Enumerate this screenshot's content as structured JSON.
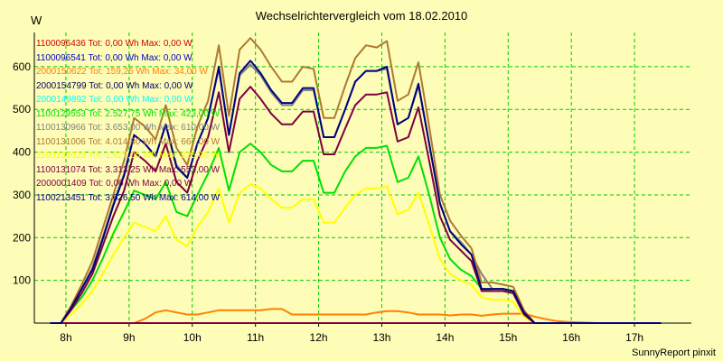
{
  "chart_data": {
    "type": "line",
    "title": "Wechselrichtervergleich vom 18.02.2010",
    "ylabel": "W",
    "footer": "SunnyReport pinxit",
    "ylim": [
      0,
      680
    ],
    "xlim": [
      7.5,
      17.9
    ],
    "grid": true,
    "legend_position": "top-left",
    "y_ticks": [
      100,
      200,
      300,
      400,
      500,
      600
    ],
    "x_ticks": [
      {
        "value": 8,
        "label": "8h"
      },
      {
        "value": 9,
        "label": "9h"
      },
      {
        "value": 10,
        "label": "10h"
      },
      {
        "value": 11,
        "label": "11h"
      },
      {
        "value": 12,
        "label": "12h"
      },
      {
        "value": 13,
        "label": "13h"
      },
      {
        "value": 14,
        "label": "14h"
      },
      {
        "value": 15,
        "label": "15h"
      },
      {
        "value": 16,
        "label": "16h"
      },
      {
        "value": 17,
        "label": "17h"
      }
    ],
    "x": [
      7.75,
      7.92,
      8.08,
      8.25,
      8.42,
      8.58,
      8.75,
      8.92,
      9.08,
      9.25,
      9.42,
      9.58,
      9.75,
      9.92,
      10.08,
      10.25,
      10.42,
      10.58,
      10.75,
      10.92,
      11.08,
      11.25,
      11.42,
      11.58,
      11.75,
      11.92,
      12.08,
      12.25,
      12.42,
      12.58,
      12.75,
      12.92,
      13.08,
      13.25,
      13.42,
      13.58,
      13.75,
      13.92,
      14.08,
      14.25,
      14.42,
      14.58,
      14.75,
      14.92,
      15.08,
      15.25,
      15.42,
      15.58,
      15.75,
      15.92,
      16.08,
      16.25,
      16.42,
      16.58,
      16.75,
      16.92,
      17.08,
      17.25,
      17.42
    ],
    "series": [
      {
        "name": "1100096436 Tot: 0,00 Wh Max: 0,00 W",
        "color": "#cc0000",
        "values": [
          0,
          0,
          0,
          0,
          0,
          0,
          0,
          0,
          0,
          0,
          0,
          0,
          0,
          0,
          0,
          0,
          0,
          0,
          0,
          0,
          0,
          0,
          0,
          0,
          0,
          0,
          0,
          0,
          0,
          0,
          0,
          0,
          0,
          0,
          0,
          0,
          0,
          0,
          0,
          0,
          0,
          0,
          0,
          0,
          0,
          0,
          0,
          0,
          0,
          0,
          0,
          0,
          0,
          0,
          0,
          0,
          0,
          0,
          0
        ]
      },
      {
        "name": "1100096541 Tot: 0,00 Wh Max: 0,00 W",
        "color": "#0000cc",
        "values": [
          0,
          0,
          0,
          0,
          0,
          0,
          0,
          0,
          0,
          0,
          0,
          0,
          0,
          0,
          0,
          0,
          0,
          0,
          0,
          0,
          0,
          0,
          0,
          0,
          0,
          0,
          0,
          0,
          0,
          0,
          0,
          0,
          0,
          0,
          0,
          0,
          0,
          0,
          0,
          0,
          0,
          0,
          0,
          0,
          0,
          0,
          0,
          0,
          0,
          0,
          0,
          0,
          0,
          0,
          0,
          0,
          0,
          0,
          0
        ]
      },
      {
        "name": "2000150622 Tot: 159,25 Wh Max: 34,00 W",
        "color": "#ff8000",
        "values": [
          0,
          0,
          0,
          0,
          0,
          0,
          0,
          0,
          0,
          10,
          25,
          30,
          25,
          20,
          20,
          25,
          30,
          30,
          30,
          30,
          30,
          33,
          33,
          20,
          20,
          20,
          20,
          20,
          20,
          20,
          20,
          25,
          28,
          28,
          25,
          20,
          20,
          20,
          18,
          20,
          20,
          17,
          20,
          22,
          22,
          22,
          15,
          10,
          5,
          3,
          2,
          1,
          0,
          0,
          0,
          0,
          0,
          0,
          0
        ]
      },
      {
        "name": "2000154799 Tot: 0,00 Wh Max: 0,00 W",
        "color": "#000066",
        "values": [
          0,
          0,
          0,
          0,
          0,
          0,
          0,
          0,
          0,
          0,
          0,
          0,
          0,
          0,
          0,
          0,
          0,
          0,
          0,
          0,
          0,
          0,
          0,
          0,
          0,
          0,
          0,
          0,
          0,
          0,
          0,
          0,
          0,
          0,
          0,
          0,
          0,
          0,
          0,
          0,
          0,
          0,
          0,
          0,
          0,
          0,
          0,
          0,
          0,
          0,
          0,
          0,
          0,
          0,
          0,
          0,
          0,
          0,
          0
        ]
      },
      {
        "name": "2000149892 Tot: 0,00 Wh Max: 0,00 W",
        "color": "#00ffff",
        "values": [
          0,
          0,
          0,
          0,
          0,
          0,
          0,
          0,
          0,
          0,
          0,
          0,
          0,
          0,
          0,
          0,
          0,
          0,
          0,
          0,
          0,
          0,
          0,
          0,
          0,
          0,
          0,
          0,
          0,
          0,
          0,
          0,
          0,
          0,
          0,
          0,
          0,
          0,
          0,
          0,
          0,
          0,
          0,
          0,
          0,
          0,
          0,
          0,
          0,
          0,
          0,
          0,
          0,
          0,
          0,
          0,
          0,
          0,
          0
        ]
      },
      {
        "name": "1100129553 Tot: 2.527,75 Wh Max: 423,00 W",
        "color": "#00e000",
        "values": [
          0,
          0,
          30,
          60,
          100,
          150,
          210,
          260,
          310,
          300,
          290,
          330,
          260,
          250,
          300,
          350,
          410,
          310,
          400,
          420,
          400,
          370,
          355,
          355,
          380,
          380,
          305,
          305,
          355,
          390,
          410,
          410,
          415,
          330,
          340,
          390,
          300,
          200,
          150,
          125,
          110,
          80,
          75,
          75,
          70,
          20,
          0,
          0,
          0,
          0,
          0,
          0,
          0,
          0,
          0,
          0,
          0,
          0,
          0
        ]
      },
      {
        "name": "1100130966 Tot: 3.653,00 Wh Max: 610,00 W",
        "color": "#808080",
        "values": [
          0,
          0,
          35,
          80,
          130,
          200,
          280,
          350,
          440,
          420,
          390,
          465,
          370,
          340,
          420,
          480,
          595,
          440,
          580,
          605,
          580,
          540,
          510,
          510,
          545,
          545,
          435,
          435,
          500,
          565,
          590,
          590,
          595,
          465,
          480,
          555,
          420,
          280,
          215,
          190,
          160,
          115,
          80,
          80,
          75,
          25,
          0,
          0,
          0,
          0,
          0,
          0,
          0,
          0,
          0,
          0,
          0,
          0,
          0
        ]
      },
      {
        "name": "1100131006 Tot: 4.014,80 Wh Max: 667,00 W",
        "color": "#b07830",
        "values": [
          0,
          0,
          40,
          90,
          145,
          220,
          300,
          380,
          480,
          460,
          430,
          510,
          410,
          370,
          460,
          520,
          650,
          485,
          640,
          667,
          640,
          600,
          565,
          565,
          600,
          595,
          480,
          480,
          555,
          620,
          650,
          645,
          660,
          520,
          535,
          610,
          460,
          300,
          240,
          205,
          175,
          95,
          95,
          90,
          85,
          30,
          0,
          0,
          0,
          0,
          0,
          0,
          0,
          0,
          0,
          0,
          0,
          0,
          0
        ]
      },
      {
        "name": "1100131025 Tot: 1.927,00 Wh Max: 325,00 W",
        "color": "#ffff00",
        "values": [
          0,
          0,
          20,
          45,
          75,
          115,
          160,
          200,
          235,
          225,
          215,
          250,
          195,
          180,
          225,
          260,
          315,
          235,
          305,
          325,
          315,
          290,
          270,
          270,
          290,
          290,
          235,
          235,
          270,
          300,
          315,
          315,
          320,
          255,
          265,
          305,
          230,
          150,
          115,
          100,
          90,
          60,
          55,
          55,
          50,
          15,
          0,
          0,
          0,
          0,
          0,
          0,
          0,
          0,
          0,
          0,
          0,
          0,
          0
        ]
      },
      {
        "name": "1100131074 Tot: 3.313,25 Wh Max: 553,00 W",
        "color": "#800040",
        "values": [
          0,
          0,
          30,
          70,
          115,
          180,
          250,
          310,
          400,
          380,
          355,
          420,
          330,
          305,
          380,
          435,
          540,
          400,
          525,
          553,
          525,
          490,
          465,
          465,
          495,
          495,
          395,
          395,
          455,
          510,
          535,
          535,
          540,
          425,
          435,
          505,
          380,
          250,
          195,
          170,
          145,
          75,
          75,
          75,
          70,
          20,
          0,
          0,
          0,
          0,
          0,
          0,
          0,
          0,
          0,
          0,
          0,
          0,
          0
        ]
      },
      {
        "name": "2000001409 Tot: 0,00 Wh Max: 0,00 W",
        "color": "#800040",
        "values": [
          0,
          0,
          0,
          0,
          0,
          0,
          0,
          0,
          0,
          0,
          0,
          0,
          0,
          0,
          0,
          0,
          0,
          0,
          0,
          0,
          0,
          0,
          0,
          0,
          0,
          0,
          0,
          0,
          0,
          0,
          0,
          0,
          0,
          0,
          0,
          0,
          0,
          0,
          0,
          0,
          0,
          0,
          0,
          0,
          0,
          0,
          0,
          0,
          0,
          0,
          0,
          0,
          0,
          0,
          0,
          0,
          0,
          0,
          0
        ]
      },
      {
        "name": "1100213451 Tot: 3.626,50 Wh Max: 614,00 W",
        "color": "#000080",
        "values": [
          0,
          0,
          35,
          80,
          125,
          195,
          275,
          345,
          440,
          420,
          390,
          465,
          365,
          340,
          420,
          480,
          600,
          440,
          585,
          614,
          585,
          545,
          515,
          515,
          550,
          550,
          435,
          435,
          500,
          565,
          590,
          590,
          600,
          465,
          480,
          560,
          420,
          280,
          215,
          185,
          160,
          80,
          80,
          80,
          75,
          25,
          0,
          0,
          0,
          0,
          0,
          0,
          0,
          0,
          0,
          0,
          0,
          0,
          0
        ]
      }
    ]
  }
}
